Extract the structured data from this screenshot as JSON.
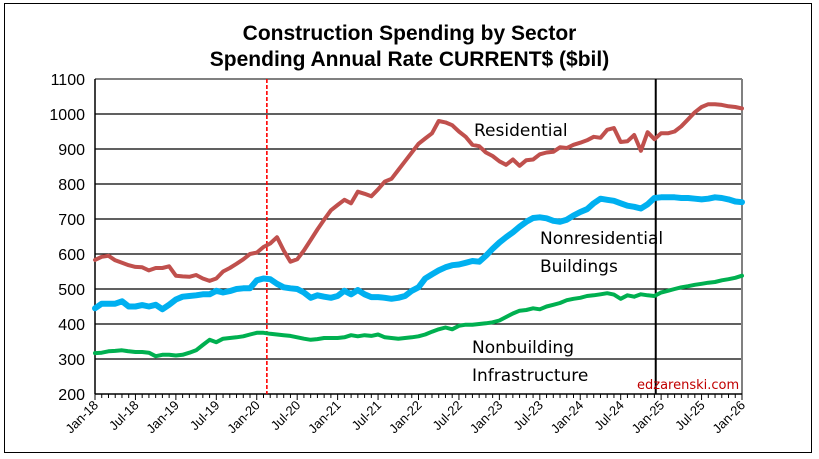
{
  "chart_data": {
    "type": "line",
    "title": "Construction Spending by Sector",
    "subtitle": "Spending Annual Rate CURRENT$ ($bil)",
    "xlabel": "",
    "ylabel": "",
    "ylim": [
      200,
      1100
    ],
    "yticks": [
      200,
      300,
      400,
      500,
      600,
      700,
      800,
      900,
      1000,
      1100
    ],
    "xlim_months": [
      0,
      96
    ],
    "xticks": [
      {
        "label": "Jan-18",
        "m": 0
      },
      {
        "label": "Jul-18",
        "m": 6
      },
      {
        "label": "Jan-19",
        "m": 12
      },
      {
        "label": "Jul-19",
        "m": 18
      },
      {
        "label": "Jan-20",
        "m": 24
      },
      {
        "label": "Jul-20",
        "m": 30
      },
      {
        "label": "Jan-21",
        "m": 36
      },
      {
        "label": "Jul-21",
        "m": 42
      },
      {
        "label": "Jan-22",
        "m": 48
      },
      {
        "label": "Jul-22",
        "m": 54
      },
      {
        "label": "Jan-23",
        "m": 60
      },
      {
        "label": "Jul-23",
        "m": 66
      },
      {
        "label": "Jan-24",
        "m": 72
      },
      {
        "label": "Jul-24",
        "m": 78
      },
      {
        "label": "Jan-25",
        "m": 84
      },
      {
        "label": "Jul-25",
        "m": 90
      },
      {
        "label": "Jan-26",
        "m": 96
      }
    ],
    "grid": true,
    "reference_lines": [
      {
        "name": "pandemic-marker",
        "m": 25.5,
        "style": "dashed",
        "color": "#ff0000"
      },
      {
        "name": "forecast-start",
        "m": 83.2,
        "style": "solid",
        "color": "#000000"
      }
    ],
    "series": [
      {
        "name": "Residential",
        "label_lines": [
          "Residential"
        ],
        "color": "#c0504d",
        "points": [
          [
            0,
            583
          ],
          [
            1,
            592
          ],
          [
            2,
            595
          ],
          [
            3,
            582
          ],
          [
            4,
            575
          ],
          [
            5,
            568
          ],
          [
            6,
            563
          ],
          [
            7,
            562
          ],
          [
            8,
            553
          ],
          [
            9,
            560
          ],
          [
            10,
            560
          ],
          [
            11,
            565
          ],
          [
            12,
            538
          ],
          [
            13,
            536
          ],
          [
            14,
            535
          ],
          [
            15,
            540
          ],
          [
            16,
            530
          ],
          [
            17,
            523
          ],
          [
            18,
            530
          ],
          [
            19,
            550
          ],
          [
            20,
            560
          ],
          [
            21,
            572
          ],
          [
            22,
            585
          ],
          [
            23,
            600
          ],
          [
            24,
            604
          ],
          [
            25,
            620
          ],
          [
            26,
            630
          ],
          [
            27,
            648
          ],
          [
            28,
            610
          ],
          [
            29,
            578
          ],
          [
            30,
            585
          ],
          [
            31,
            610
          ],
          [
            32,
            640
          ],
          [
            33,
            670
          ],
          [
            34,
            698
          ],
          [
            35,
            725
          ],
          [
            36,
            740
          ],
          [
            37,
            755
          ],
          [
            38,
            745
          ],
          [
            39,
            778
          ],
          [
            40,
            772
          ],
          [
            41,
            765
          ],
          [
            42,
            785
          ],
          [
            43,
            807
          ],
          [
            44,
            815
          ],
          [
            45,
            840
          ],
          [
            46,
            865
          ],
          [
            47,
            890
          ],
          [
            48,
            915
          ],
          [
            49,
            930
          ],
          [
            50,
            945
          ],
          [
            51,
            980
          ],
          [
            52,
            976
          ],
          [
            53,
            968
          ],
          [
            54,
            950
          ],
          [
            55,
            935
          ],
          [
            56,
            912
          ],
          [
            57,
            908
          ],
          [
            58,
            890
          ],
          [
            59,
            880
          ],
          [
            60,
            865
          ],
          [
            61,
            855
          ],
          [
            62,
            870
          ],
          [
            63,
            852
          ],
          [
            64,
            868
          ],
          [
            65,
            870
          ],
          [
            66,
            885
          ],
          [
            67,
            890
          ],
          [
            68,
            892
          ],
          [
            69,
            905
          ],
          [
            70,
            903
          ],
          [
            71,
            912
          ],
          [
            72,
            918
          ],
          [
            73,
            925
          ],
          [
            74,
            935
          ],
          [
            75,
            932
          ],
          [
            76,
            955
          ],
          [
            77,
            960
          ],
          [
            78,
            920
          ],
          [
            79,
            922
          ],
          [
            80,
            940
          ],
          [
            81,
            895
          ],
          [
            82,
            948
          ],
          [
            83,
            928
          ],
          [
            84,
            945
          ],
          [
            85,
            945
          ],
          [
            86,
            950
          ],
          [
            87,
            965
          ],
          [
            88,
            985
          ],
          [
            89,
            1005
          ],
          [
            90,
            1020
          ],
          [
            91,
            1028
          ],
          [
            92,
            1028
          ],
          [
            93,
            1026
          ],
          [
            94,
            1022
          ],
          [
            95,
            1020
          ],
          [
            96,
            1016
          ]
        ]
      },
      {
        "name": "Nonresidential Buildings",
        "label_lines": [
          "Nonresidential",
          "Buildings"
        ],
        "color": "#00b0f0",
        "points": [
          [
            0,
            445
          ],
          [
            1,
            458
          ],
          [
            2,
            458
          ],
          [
            3,
            458
          ],
          [
            4,
            465
          ],
          [
            5,
            450
          ],
          [
            6,
            450
          ],
          [
            7,
            454
          ],
          [
            8,
            450
          ],
          [
            9,
            455
          ],
          [
            10,
            442
          ],
          [
            11,
            455
          ],
          [
            12,
            470
          ],
          [
            13,
            478
          ],
          [
            14,
            480
          ],
          [
            15,
            482
          ],
          [
            16,
            485
          ],
          [
            17,
            485
          ],
          [
            18,
            495
          ],
          [
            19,
            490
          ],
          [
            20,
            494
          ],
          [
            21,
            500
          ],
          [
            22,
            502
          ],
          [
            23,
            502
          ],
          [
            24,
            525
          ],
          [
            25,
            530
          ],
          [
            26,
            528
          ],
          [
            27,
            515
          ],
          [
            28,
            505
          ],
          [
            29,
            502
          ],
          [
            30,
            500
          ],
          [
            31,
            490
          ],
          [
            32,
            475
          ],
          [
            33,
            482
          ],
          [
            34,
            478
          ],
          [
            35,
            475
          ],
          [
            36,
            480
          ],
          [
            37,
            495
          ],
          [
            38,
            485
          ],
          [
            39,
            497
          ],
          [
            40,
            485
          ],
          [
            41,
            477
          ],
          [
            42,
            477
          ],
          [
            43,
            475
          ],
          [
            44,
            472
          ],
          [
            45,
            475
          ],
          [
            46,
            480
          ],
          [
            47,
            495
          ],
          [
            48,
            505
          ],
          [
            49,
            530
          ],
          [
            50,
            542
          ],
          [
            51,
            553
          ],
          [
            52,
            562
          ],
          [
            53,
            568
          ],
          [
            54,
            570
          ],
          [
            55,
            575
          ],
          [
            56,
            580
          ],
          [
            57,
            578
          ],
          [
            58,
            595
          ],
          [
            59,
            615
          ],
          [
            60,
            633
          ],
          [
            61,
            648
          ],
          [
            62,
            662
          ],
          [
            63,
            678
          ],
          [
            64,
            692
          ],
          [
            65,
            703
          ],
          [
            66,
            705
          ],
          [
            67,
            702
          ],
          [
            68,
            695
          ],
          [
            69,
            692
          ],
          [
            70,
            698
          ],
          [
            71,
            710
          ],
          [
            72,
            720
          ],
          [
            73,
            728
          ],
          [
            74,
            745
          ],
          [
            75,
            758
          ],
          [
            76,
            755
          ],
          [
            77,
            752
          ],
          [
            78,
            745
          ],
          [
            79,
            738
          ],
          [
            80,
            735
          ],
          [
            81,
            730
          ],
          [
            82,
            742
          ],
          [
            83,
            760
          ],
          [
            84,
            762
          ],
          [
            85,
            762
          ],
          [
            86,
            762
          ],
          [
            87,
            760
          ],
          [
            88,
            760
          ],
          [
            89,
            758
          ],
          [
            90,
            756
          ],
          [
            91,
            758
          ],
          [
            92,
            762
          ],
          [
            93,
            760
          ],
          [
            94,
            756
          ],
          [
            95,
            750
          ],
          [
            96,
            748
          ]
        ]
      },
      {
        "name": "Nonbuilding Infrastructure",
        "label_lines": [
          "Nonbuilding",
          "Infrastructure"
        ],
        "color": "#00b050",
        "points": [
          [
            0,
            317
          ],
          [
            1,
            318
          ],
          [
            2,
            322
          ],
          [
            3,
            323
          ],
          [
            4,
            325
          ],
          [
            5,
            322
          ],
          [
            6,
            320
          ],
          [
            7,
            320
          ],
          [
            8,
            318
          ],
          [
            9,
            308
          ],
          [
            10,
            312
          ],
          [
            11,
            312
          ],
          [
            12,
            310
          ],
          [
            13,
            312
          ],
          [
            14,
            318
          ],
          [
            15,
            325
          ],
          [
            16,
            340
          ],
          [
            17,
            355
          ],
          [
            18,
            348
          ],
          [
            19,
            358
          ],
          [
            20,
            360
          ],
          [
            21,
            362
          ],
          [
            22,
            365
          ],
          [
            23,
            370
          ],
          [
            24,
            375
          ],
          [
            25,
            375
          ],
          [
            26,
            372
          ],
          [
            27,
            370
          ],
          [
            28,
            368
          ],
          [
            29,
            366
          ],
          [
            30,
            362
          ],
          [
            31,
            358
          ],
          [
            32,
            355
          ],
          [
            33,
            357
          ],
          [
            34,
            360
          ],
          [
            35,
            360
          ],
          [
            36,
            360
          ],
          [
            37,
            362
          ],
          [
            38,
            368
          ],
          [
            39,
            365
          ],
          [
            40,
            368
          ],
          [
            41,
            366
          ],
          [
            42,
            370
          ],
          [
            43,
            362
          ],
          [
            44,
            360
          ],
          [
            45,
            358
          ],
          [
            46,
            360
          ],
          [
            47,
            362
          ],
          [
            48,
            365
          ],
          [
            49,
            370
          ],
          [
            50,
            378
          ],
          [
            51,
            385
          ],
          [
            52,
            390
          ],
          [
            53,
            385
          ],
          [
            54,
            395
          ],
          [
            55,
            398
          ],
          [
            56,
            398
          ],
          [
            57,
            400
          ],
          [
            58,
            402
          ],
          [
            59,
            405
          ],
          [
            60,
            410
          ],
          [
            61,
            420
          ],
          [
            62,
            430
          ],
          [
            63,
            438
          ],
          [
            64,
            440
          ],
          [
            65,
            445
          ],
          [
            66,
            442
          ],
          [
            67,
            450
          ],
          [
            68,
            455
          ],
          [
            69,
            460
          ],
          [
            70,
            468
          ],
          [
            71,
            472
          ],
          [
            72,
            475
          ],
          [
            73,
            480
          ],
          [
            74,
            482
          ],
          [
            75,
            485
          ],
          [
            76,
            488
          ],
          [
            77,
            484
          ],
          [
            78,
            472
          ],
          [
            79,
            482
          ],
          [
            80,
            478
          ],
          [
            81,
            485
          ],
          [
            82,
            482
          ],
          [
            83,
            480
          ],
          [
            84,
            490
          ],
          [
            85,
            495
          ],
          [
            86,
            500
          ],
          [
            87,
            505
          ],
          [
            88,
            508
          ],
          [
            89,
            512
          ],
          [
            90,
            515
          ],
          [
            91,
            518
          ],
          [
            92,
            520
          ],
          [
            93,
            525
          ],
          [
            94,
            528
          ],
          [
            95,
            532
          ],
          [
            96,
            538
          ]
        ]
      }
    ],
    "annotations": [
      {
        "text": "edzarenski.com",
        "color": "#c00000",
        "position": "bottom-right"
      }
    ]
  }
}
